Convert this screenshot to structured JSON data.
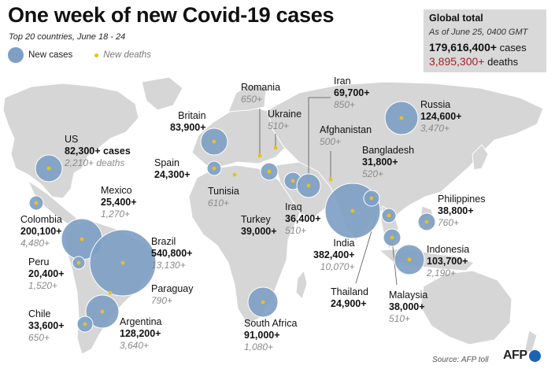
{
  "title": "One week of new Covid-19 cases",
  "subtitle": "Top 20 countries, June 18 - 24",
  "legend": {
    "cases_label": "New cases",
    "deaths_label": "New deaths"
  },
  "global": {
    "heading": "Global total",
    "date": "As of June 25, 0400 GMT",
    "cases_value": "179,616,400+",
    "cases_unit": "cases",
    "deaths_value": "3,895,300+",
    "deaths_unit": "deaths"
  },
  "colors": {
    "bubble": "#7f9fc4",
    "bubble_stroke": "#ffffff",
    "death_dot": "#e8c21b",
    "land": "#d6d6d6",
    "deaths_total": "#a1232a"
  },
  "countries": {
    "us": {
      "name": "US",
      "cases": "82,300+ cases",
      "deaths": "2,210+ deaths"
    },
    "mexico": {
      "name": "Mexico",
      "cases": "25,400+",
      "deaths": "1,270+"
    },
    "colombia": {
      "name": "Colombia",
      "cases": "200,100+",
      "deaths": "4,480+"
    },
    "peru": {
      "name": "Peru",
      "cases": "20,400+",
      "deaths": "1,520+"
    },
    "chile": {
      "name": "Chile",
      "cases": "33,600+",
      "deaths": "650+"
    },
    "brazil": {
      "name": "Brazil",
      "cases": "540,800+",
      "deaths": "13,130+"
    },
    "paraguay": {
      "name": "Paraguay",
      "cases": "",
      "deaths": "790+"
    },
    "argentina": {
      "name": "Argentina",
      "cases": "128,200+",
      "deaths": "3,640+"
    },
    "britain": {
      "name": "Britain",
      "cases": "83,900+",
      "deaths": ""
    },
    "spain": {
      "name": "Spain",
      "cases": "24,300+",
      "deaths": ""
    },
    "tunisia": {
      "name": "Tunisia",
      "cases": "",
      "deaths": "610+"
    },
    "romania": {
      "name": "Romania",
      "cases": "",
      "deaths": "650+"
    },
    "ukraine": {
      "name": "Ukraine",
      "cases": "",
      "deaths": "510+"
    },
    "turkey": {
      "name": "Turkey",
      "cases": "39,000+",
      "deaths": ""
    },
    "iraq": {
      "name": "Iraq",
      "cases": "36,400+",
      "deaths": "510+"
    },
    "iran": {
      "name": "Iran",
      "cases": "69,700+",
      "deaths": "850+"
    },
    "afghanistan": {
      "name": "Afghanistan",
      "cases": "",
      "deaths": "500+"
    },
    "russia": {
      "name": "Russia",
      "cases": "124,600+",
      "deaths": "3,470+"
    },
    "bangladesh": {
      "name": "Bangladesh",
      "cases": "31,800+",
      "deaths": "520+"
    },
    "india": {
      "name": "India",
      "cases": "382,400+",
      "deaths": "10,070+"
    },
    "thailand": {
      "name": "Thailand",
      "cases": "24,900+",
      "deaths": ""
    },
    "malaysia": {
      "name": "Malaysia",
      "cases": "38,000+",
      "deaths": "510+"
    },
    "philippines": {
      "name": "Philippines",
      "cases": "38,800+",
      "deaths": "760+"
    },
    "indonesia": {
      "name": "Indonesia",
      "cases": "103,700+",
      "deaths": "2,190+"
    },
    "south_africa": {
      "name": "South Africa",
      "cases": "91,000+",
      "deaths": "1,080+"
    }
  },
  "source": "Source: AFP toll",
  "logo": "AFP"
}
